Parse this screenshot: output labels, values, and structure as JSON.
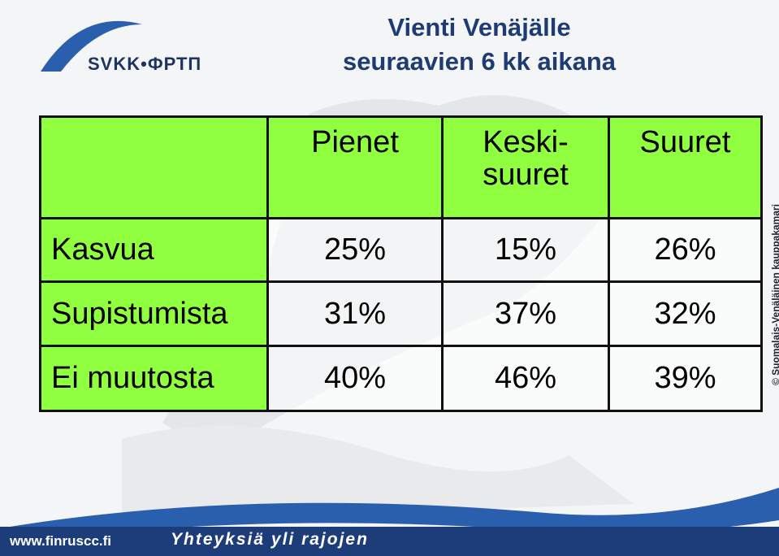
{
  "logo": "SVKK•ФРТП",
  "title": [
    "Vienti Venäjälle",
    "seuraavien 6 kk aikana"
  ],
  "table": {
    "columns": [
      "Pienet",
      "Keski-\nsuuret",
      "Suuret"
    ],
    "rows": [
      {
        "label": "Kasvua",
        "values": [
          "25%",
          "15%",
          "26%"
        ]
      },
      {
        "label": "Supistumista",
        "values": [
          "31%",
          "37%",
          "32%"
        ]
      },
      {
        "label": "Ei muutosta",
        "values": [
          "40%",
          "46%",
          "39%"
        ]
      }
    ]
  },
  "footer": {
    "url": "www.finruscc.fi",
    "slogan": "Yhteyksiä yli rajojen"
  },
  "copyright": "© Suomalais-Venäläinen kauppakamari"
}
